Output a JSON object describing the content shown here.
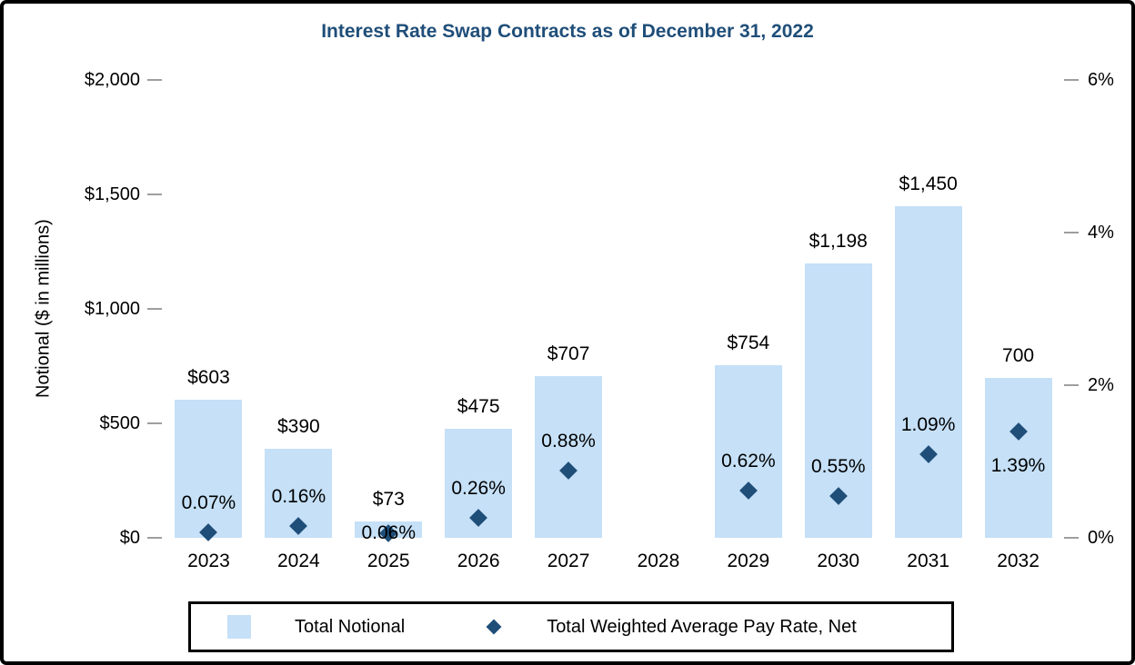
{
  "title": "Interest Rate Swap Contracts as of December 31, 2022",
  "colors": {
    "title_text": "#1F4E79",
    "bar_fill": "#C5E0F7",
    "marker_fill": "#1F4E79",
    "tick_dash": "#9E9E9E",
    "axis_text": "#000000",
    "frame_border": "#000000"
  },
  "chart_data": {
    "type": "bar",
    "subtype": "bar-with-scatter-overlay",
    "title": "Interest Rate Swap Contracts as of December 31, 2022",
    "categories": [
      "2023",
      "2024",
      "2025",
      "2026",
      "2027",
      "2028",
      "2029",
      "2030",
      "2031",
      "2032"
    ],
    "series": [
      {
        "name": "Total Notional",
        "type": "bar",
        "axis": "left",
        "values": [
          603,
          390,
          73,
          475,
          707,
          null,
          754,
          1198,
          1450,
          700
        ],
        "labels": [
          "$603",
          "$390",
          "$73",
          "$475",
          "$707",
          "",
          "$754",
          "$1,198",
          "$1,450",
          "700"
        ]
      },
      {
        "name": "Total Weighted Average Pay Rate, Net",
        "type": "scatter",
        "marker": "diamond",
        "axis": "right",
        "values": [
          0.07,
          0.16,
          0.06,
          0.26,
          0.88,
          null,
          0.62,
          0.55,
          1.09,
          1.39
        ],
        "labels": [
          "0.07%",
          "0.16%",
          "0.06%",
          "0.26%",
          "0.88%",
          "",
          "0.62%",
          "0.55%",
          "1.09%",
          "1.39%"
        ],
        "label_positions": [
          "above",
          "above",
          "on",
          "above",
          "above",
          null,
          "above",
          "above",
          "above",
          "below"
        ]
      }
    ],
    "left_axis": {
      "title": "Notional ($ in millions)",
      "min": 0,
      "max": 2000,
      "ticks": [
        "$2,000",
        "$1,500",
        "$1,000",
        "$500",
        "$0"
      ]
    },
    "right_axis": {
      "min": 0,
      "max": 6,
      "ticks": [
        "6%",
        "4%",
        "2%",
        "0%"
      ]
    },
    "grid": false,
    "legend_position": "bottom",
    "legend": [
      {
        "marker": "square",
        "label": "Total Notional"
      },
      {
        "marker": "diamond",
        "label": "Total Weighted Average Pay Rate, Net"
      }
    ]
  }
}
